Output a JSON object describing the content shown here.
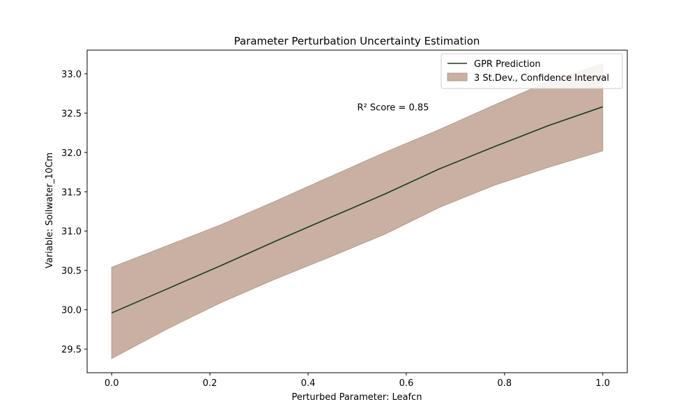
{
  "chart_data": {
    "type": "line",
    "title": "Parameter Perturbation Uncertainty Estimation",
    "xlabel": "Perturbed Parameter: Leafcn",
    "ylabel": "Variable: Soilwater_10Cm",
    "xlim": [
      -0.05,
      1.05
    ],
    "ylim": [
      29.2,
      33.3
    ],
    "x_ticks": [
      0.0,
      0.2,
      0.4,
      0.6,
      0.8,
      1.0
    ],
    "x_tick_labels": [
      "0.0",
      "0.2",
      "0.4",
      "0.6",
      "0.8",
      "1.0"
    ],
    "y_ticks": [
      29.5,
      30.0,
      30.5,
      31.0,
      31.5,
      32.0,
      32.5,
      33.0
    ],
    "y_tick_labels": [
      "29.5",
      "30.0",
      "30.5",
      "31.0",
      "31.5",
      "32.0",
      "32.5",
      "33.0"
    ],
    "grid": false,
    "legend_position": "top-right",
    "annotation": "R² Score = 0.85",
    "annotation_xy": [
      0.5,
      32.58
    ],
    "series": [
      {
        "name": "GPR Prediction",
        "color": "#1a3d0f",
        "x": [
          0.0,
          0.111,
          0.222,
          0.333,
          0.444,
          0.556,
          0.667,
          0.778,
          0.889,
          1.0
        ],
        "y": [
          29.96,
          30.26,
          30.56,
          30.87,
          31.17,
          31.47,
          31.79,
          32.07,
          32.34,
          32.58
        ]
      }
    ],
    "band": {
      "name": "3 St.Dev., Confidence Interval",
      "color": "#c9b0a3",
      "edge_color": "#b89a8b",
      "x": [
        0.0,
        0.111,
        0.222,
        0.333,
        0.444,
        0.556,
        0.667,
        0.778,
        0.889,
        1.0
      ],
      "lower": [
        29.38,
        29.75,
        30.09,
        30.39,
        30.67,
        30.96,
        31.3,
        31.58,
        31.81,
        32.02
      ],
      "upper": [
        30.54,
        30.81,
        31.08,
        31.38,
        31.69,
        32.0,
        32.29,
        32.6,
        32.9,
        33.13
      ]
    }
  }
}
